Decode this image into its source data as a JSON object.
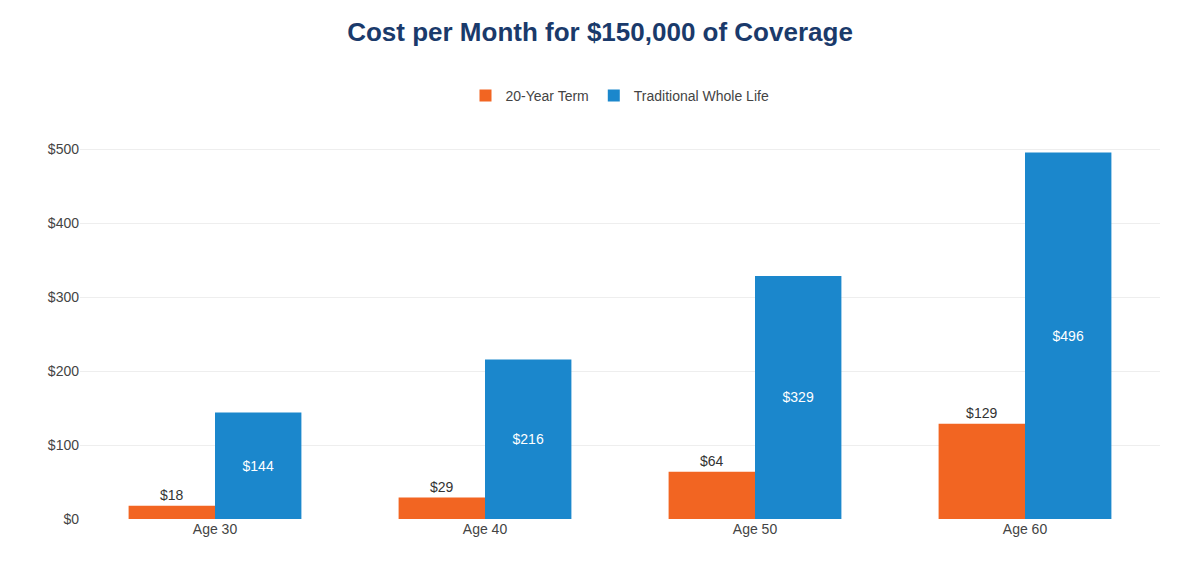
{
  "chart_data": {
    "type": "bar",
    "title": "Cost per Month for $150,000 of Coverage",
    "categories": [
      "Age 30",
      "Age 40",
      "Age 50",
      "Age 60"
    ],
    "series": [
      {
        "name": "20-Year Term",
        "color": "#f26522",
        "values": [
          18,
          29,
          64,
          129
        ],
        "value_labels": [
          "$18",
          "$29",
          "$64",
          "$129"
        ]
      },
      {
        "name": "Traditional Whole Life",
        "color": "#1b87cc",
        "values": [
          144,
          216,
          329,
          496
        ],
        "value_labels": [
          "$144",
          "$216",
          "$329",
          "$496"
        ]
      }
    ],
    "ylim": [
      0,
      540
    ],
    "yticks": [
      {
        "value": 0,
        "label": "$0"
      },
      {
        "value": 100,
        "label": "$100"
      },
      {
        "value": 200,
        "label": "$200"
      },
      {
        "value": 300,
        "label": "$300"
      },
      {
        "value": 400,
        "label": "$400"
      },
      {
        "value": 500,
        "label": "$500"
      }
    ],
    "grid": true,
    "legend": "top",
    "data_labels": true
  }
}
